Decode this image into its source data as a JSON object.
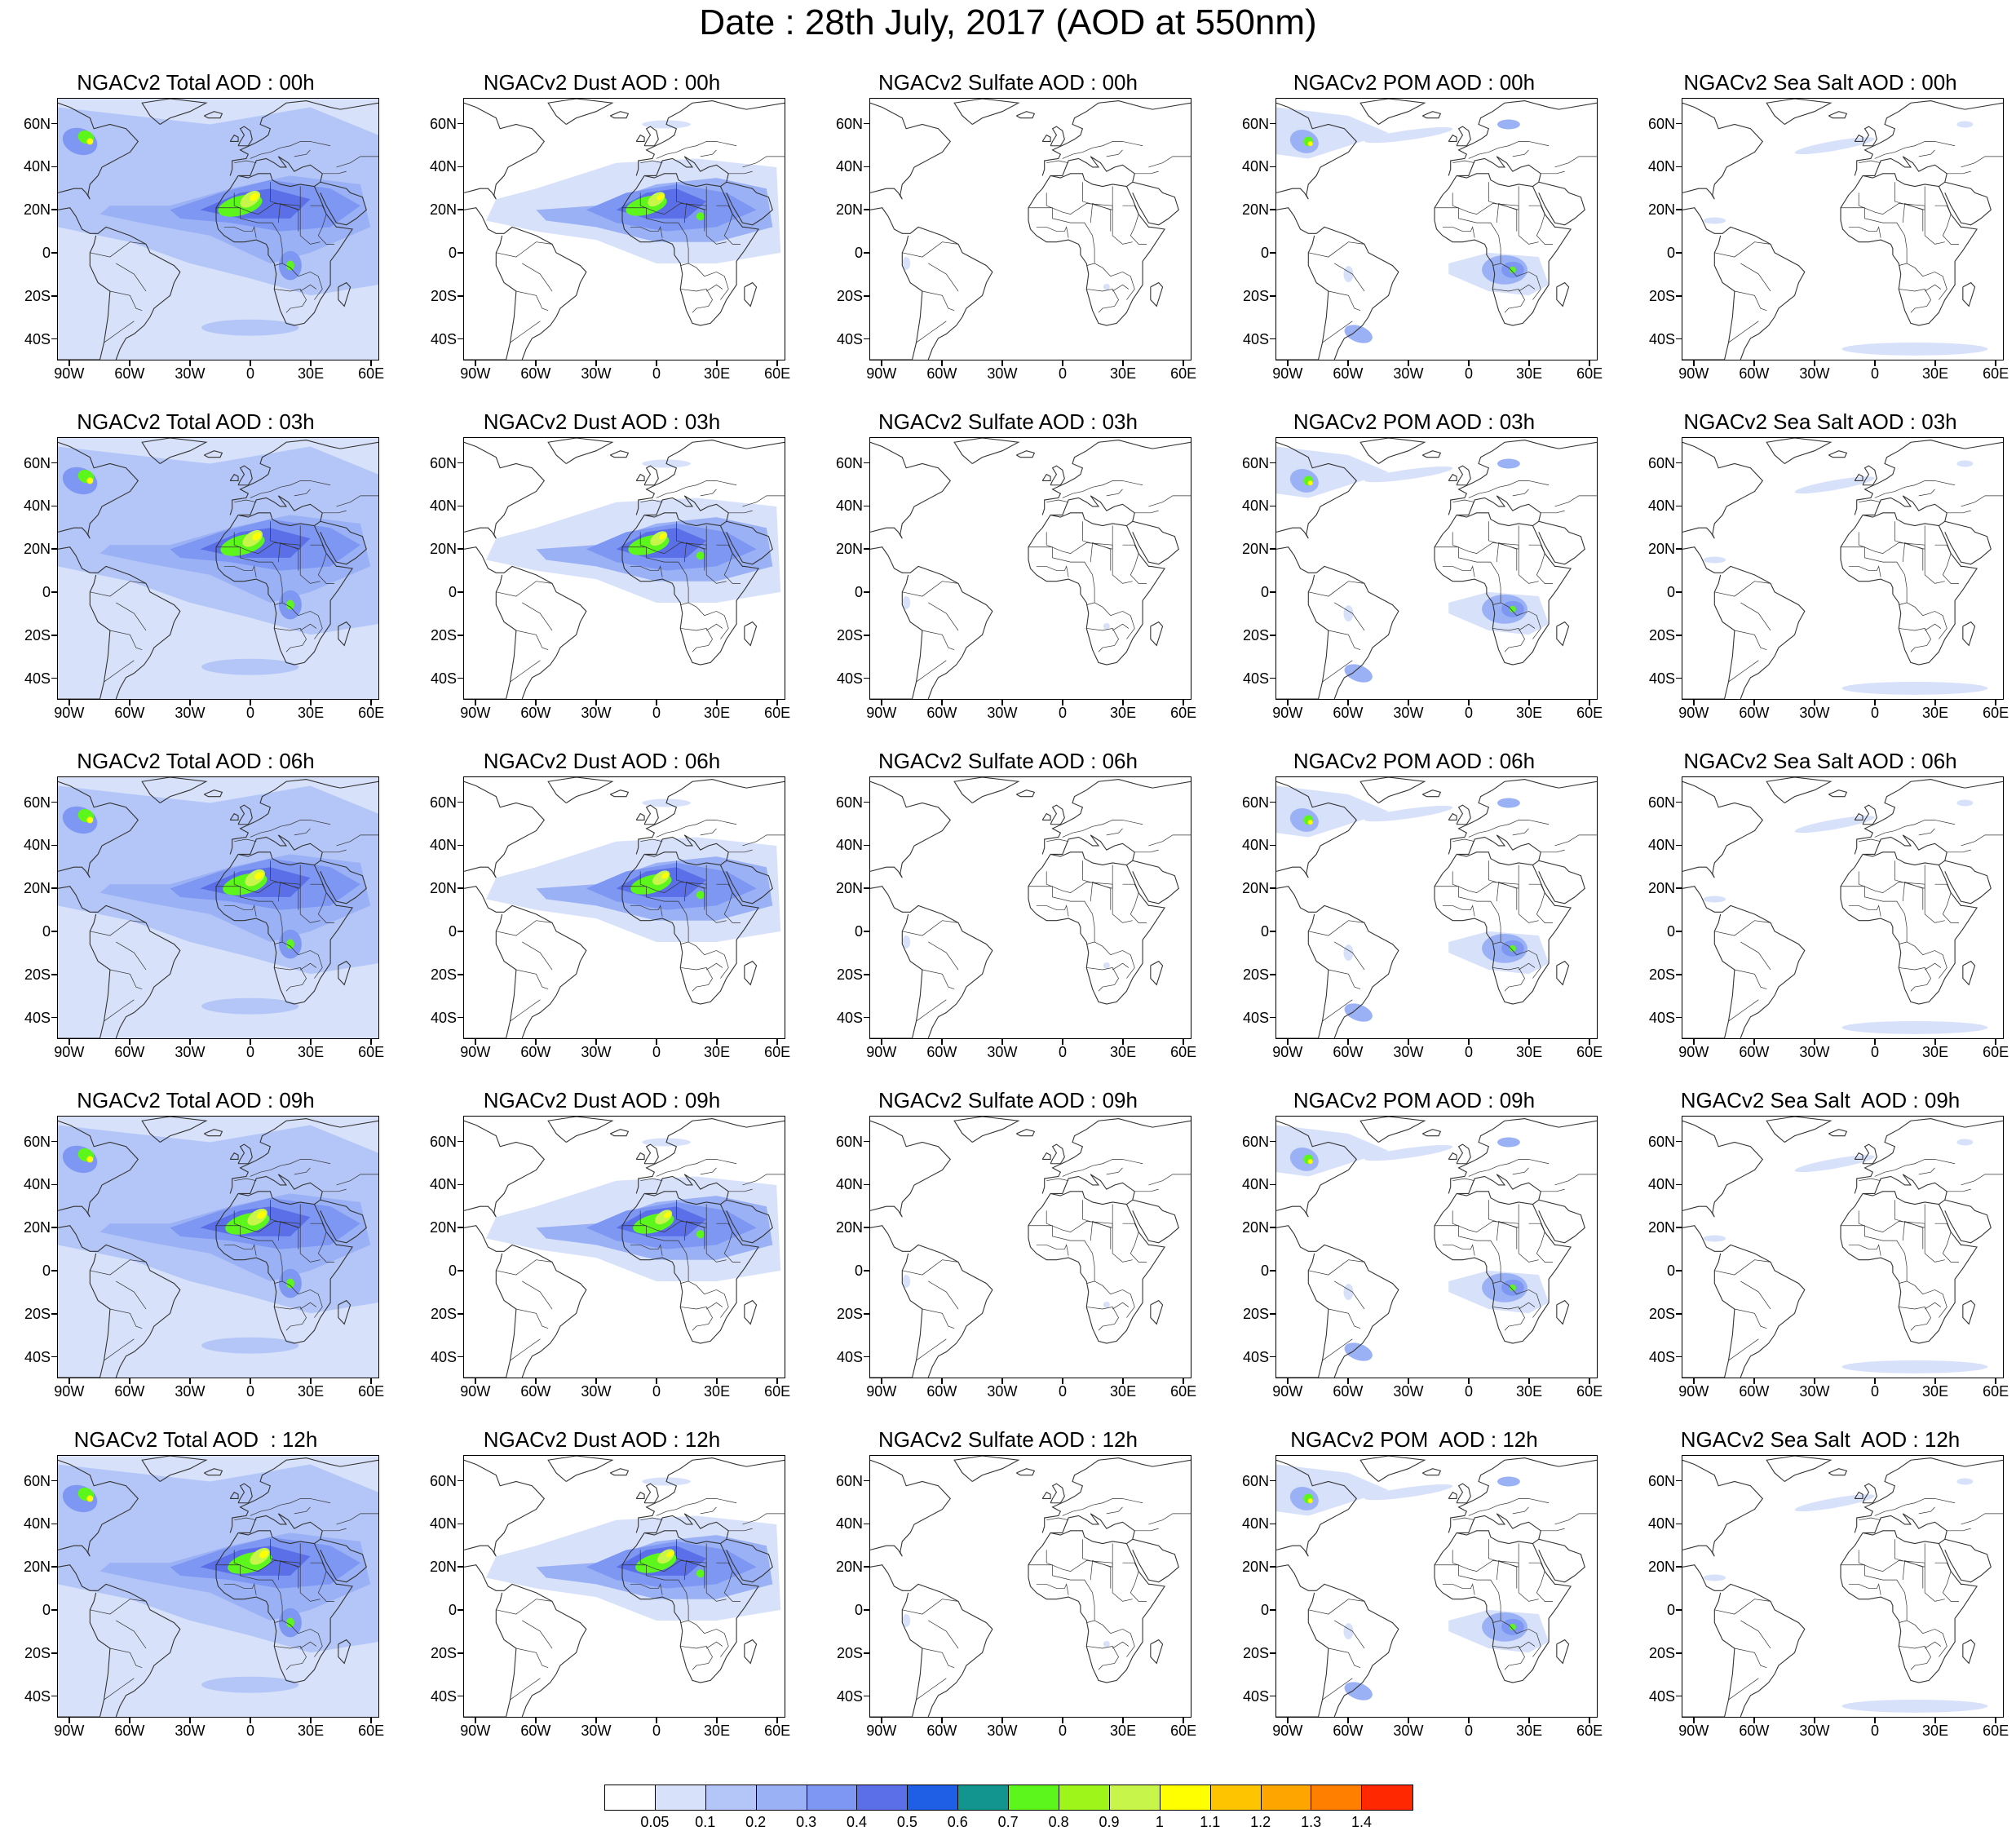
{
  "figure_title": "Date : 28th July, 2017 (AOD at 550nm)",
  "panels": [
    [
      "NGACv2 Total AOD : 00h",
      "NGACv2 Dust AOD : 00h",
      "NGACv2 Sulfate AOD : 00h",
      "NGACv2 POM AOD : 00h",
      "NGACv2 Sea Salt AOD : 00h"
    ],
    [
      "NGACv2 Total AOD : 03h",
      "NGACv2 Dust AOD : 03h",
      "NGACv2 Sulfate AOD : 03h",
      "NGACv2 POM AOD : 03h",
      "NGACv2 Sea Salt AOD : 03h"
    ],
    [
      "NGACv2 Total AOD : 06h",
      "NGACv2 Dust AOD : 06h",
      "NGACv2 Sulfate AOD : 06h",
      "NGACv2 POM AOD : 06h",
      "NGACv2 Sea Salt AOD : 06h"
    ],
    [
      "NGACv2 Total AOD : 09h",
      "NGACv2 Dust AOD : 09h",
      "NGACv2 Sulfate AOD : 09h",
      "NGACv2 POM AOD : 09h",
      "NGACv2 Sea Salt  AOD : 09h"
    ],
    [
      "NGACv2 Total AOD  : 12h",
      "NGACv2 Dust AOD : 12h",
      "NGACv2 Sulfate AOD : 12h",
      "NGACv2 POM  AOD : 12h",
      "NGACv2 Sea Salt  AOD : 12h"
    ]
  ],
  "lat_labels": [
    "60N",
    "40N",
    "20N",
    "0",
    "20S",
    "40S"
  ],
  "lon_labels": [
    "90W",
    "60W",
    "30W",
    "0",
    "30E",
    "60E"
  ],
  "colorbar": {
    "labels": [
      "0.05",
      "0.1",
      "0.2",
      "0.3",
      "0.4",
      "0.5",
      "0.6",
      "0.7",
      "0.8",
      "0.9",
      "1",
      "1.1",
      "1.2",
      "1.3",
      "1.4"
    ],
    "colors": [
      "#ffffff",
      "#d7e1fa",
      "#b4c6f7",
      "#9ab1f5",
      "#7d97f2",
      "#5a6fe8",
      "#1f5fe6",
      "#12948f",
      "#5cf51c",
      "#9df51a",
      "#c8f54a",
      "#ffff00",
      "#ffc400",
      "#ffa500",
      "#ff7f00",
      "#ff2800"
    ]
  },
  "map_colors": {
    "light": "#d7e1fa",
    "mid": "#b4c6f7",
    "medium": "#9ab1f5",
    "dark": "#7d97f2",
    "deep": "#5a6fe8",
    "green": "#5cf51c",
    "yellowgreen": "#c8f54a",
    "yellow": "#ffff00",
    "orange": "#ffc400",
    "coast": "#333333"
  }
}
